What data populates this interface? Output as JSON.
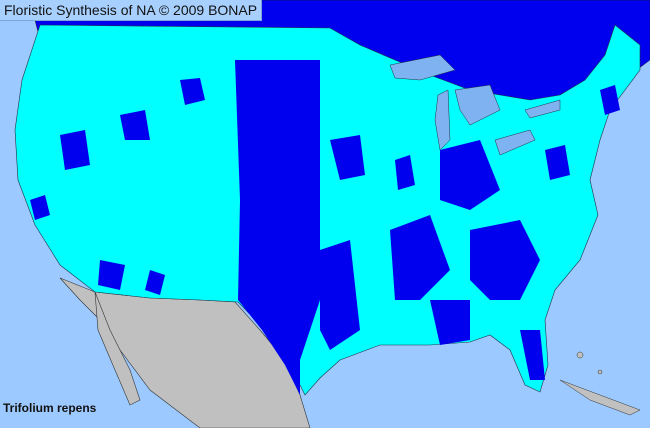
{
  "header": {
    "title": "Floristic Synthesis of NA © 2009 BONAP"
  },
  "map": {
    "species": "Trifolium repens",
    "colors": {
      "water": "#9cc9ff",
      "canada": "#0000ee",
      "present_state": "#00ffff",
      "present_county": "#0000ee",
      "mexico": "#c0c0c0",
      "lakes": "#7fb2f0"
    }
  }
}
